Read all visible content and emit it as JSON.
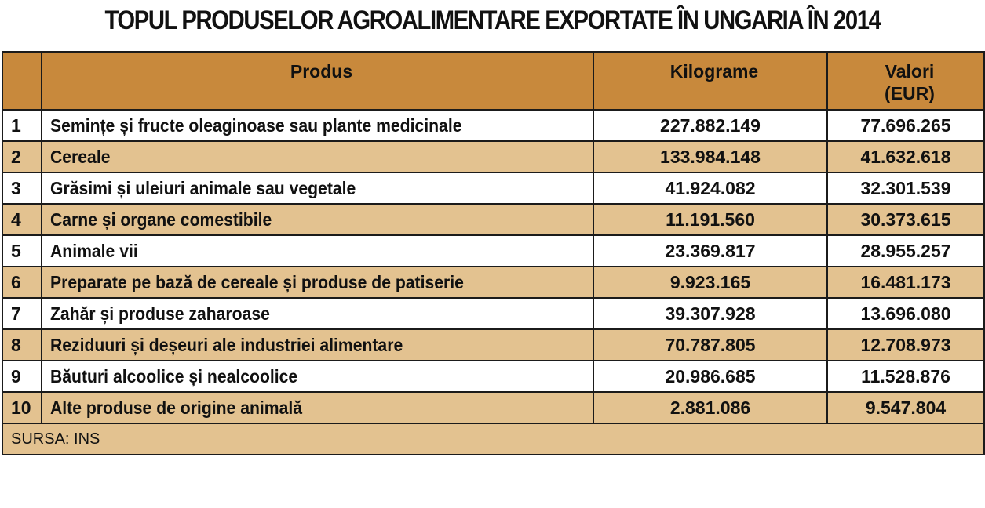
{
  "title": "TOPUL PRODUSELOR AGROALIMENTARE EXPORTATE ÎN UNGARIA ÎN 2014",
  "chart_data": {
    "type": "table",
    "columns": [
      "",
      "Produs",
      "Kilograme",
      "Valori\n(EUR)"
    ],
    "rows": [
      {
        "rank": "1",
        "product": "Semințe și fructe oleaginoase sau plante medicinale",
        "kg": "227.882.149",
        "eur": "77.696.265"
      },
      {
        "rank": "2",
        "product": "Cereale",
        "kg": "133.984.148",
        "eur": "41.632.618"
      },
      {
        "rank": "3",
        "product": "Grăsimi și uleiuri animale sau vegetale",
        "kg": "41.924.082",
        "eur": "32.301.539"
      },
      {
        "rank": "4",
        "product": "Carne și organe comestibile",
        "kg": "11.191.560",
        "eur": "30.373.615"
      },
      {
        "rank": "5",
        "product": "Animale vii",
        "kg": "23.369.817",
        "eur": "28.955.257"
      },
      {
        "rank": "6",
        "product": "Preparate pe bază de cereale și produse de patiserie",
        "kg": "9.923.165",
        "eur": "16.481.173"
      },
      {
        "rank": "7",
        "product": "Zahăr și produse zaharoase",
        "kg": "39.307.928",
        "eur": "13.696.080"
      },
      {
        "rank": "8",
        "product": "Reziduuri și deșeuri ale industriei alimentare",
        "kg": "70.787.805",
        "eur": "12.708.973"
      },
      {
        "rank": "9",
        "product": "Băuturi alcoolice și nealcoolice",
        "kg": "20.986.685",
        "eur": "11.528.876"
      },
      {
        "rank": "10",
        "product": "Alte produse de origine animală",
        "kg": "2.881.086",
        "eur": "9.547.804"
      }
    ],
    "source": "SURSA: INS"
  },
  "colors": {
    "header_bg": "#c8893c",
    "band_bg": "#e3c290",
    "border": "#1b1b1b"
  }
}
